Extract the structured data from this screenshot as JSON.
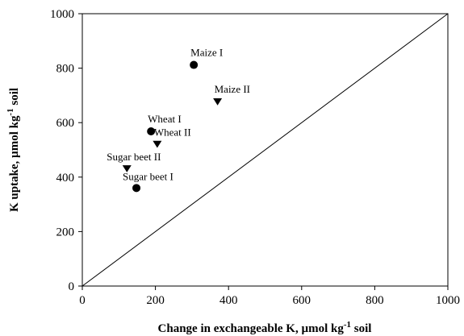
{
  "chart_data": {
    "type": "scatter",
    "xlim": [
      0,
      1000
    ],
    "ylim": [
      0,
      1000
    ],
    "x_ticks": [
      0,
      200,
      400,
      600,
      800,
      1000
    ],
    "y_ticks": [
      0,
      200,
      400,
      600,
      800,
      1000
    ],
    "xlabel": {
      "before": "Change in exchangeable K, µmol kg",
      "sup": "-1",
      "after": " soil"
    },
    "ylabel": {
      "before": "K uptake, µmol kg",
      "sup": "-1",
      "after": " soil"
    },
    "reference_line": {
      "from": [
        0,
        0
      ],
      "to": [
        1000,
        1000
      ]
    },
    "points": [
      {
        "label": "Maize I",
        "x": 305,
        "y": 812,
        "marker": "circle"
      },
      {
        "label": "Maize II",
        "x": 370,
        "y": 678,
        "marker": "triangle-down"
      },
      {
        "label": "Wheat I",
        "x": 188,
        "y": 568,
        "marker": "circle"
      },
      {
        "label": "Wheat II",
        "x": 205,
        "y": 522,
        "marker": "triangle-down"
      },
      {
        "label": "Sugar beet II",
        "x": 122,
        "y": 432,
        "marker": "triangle-down"
      },
      {
        "label": "Sugar beet I",
        "x": 148,
        "y": 360,
        "marker": "circle"
      }
    ],
    "grid": false,
    "marker_color": "#000000"
  }
}
